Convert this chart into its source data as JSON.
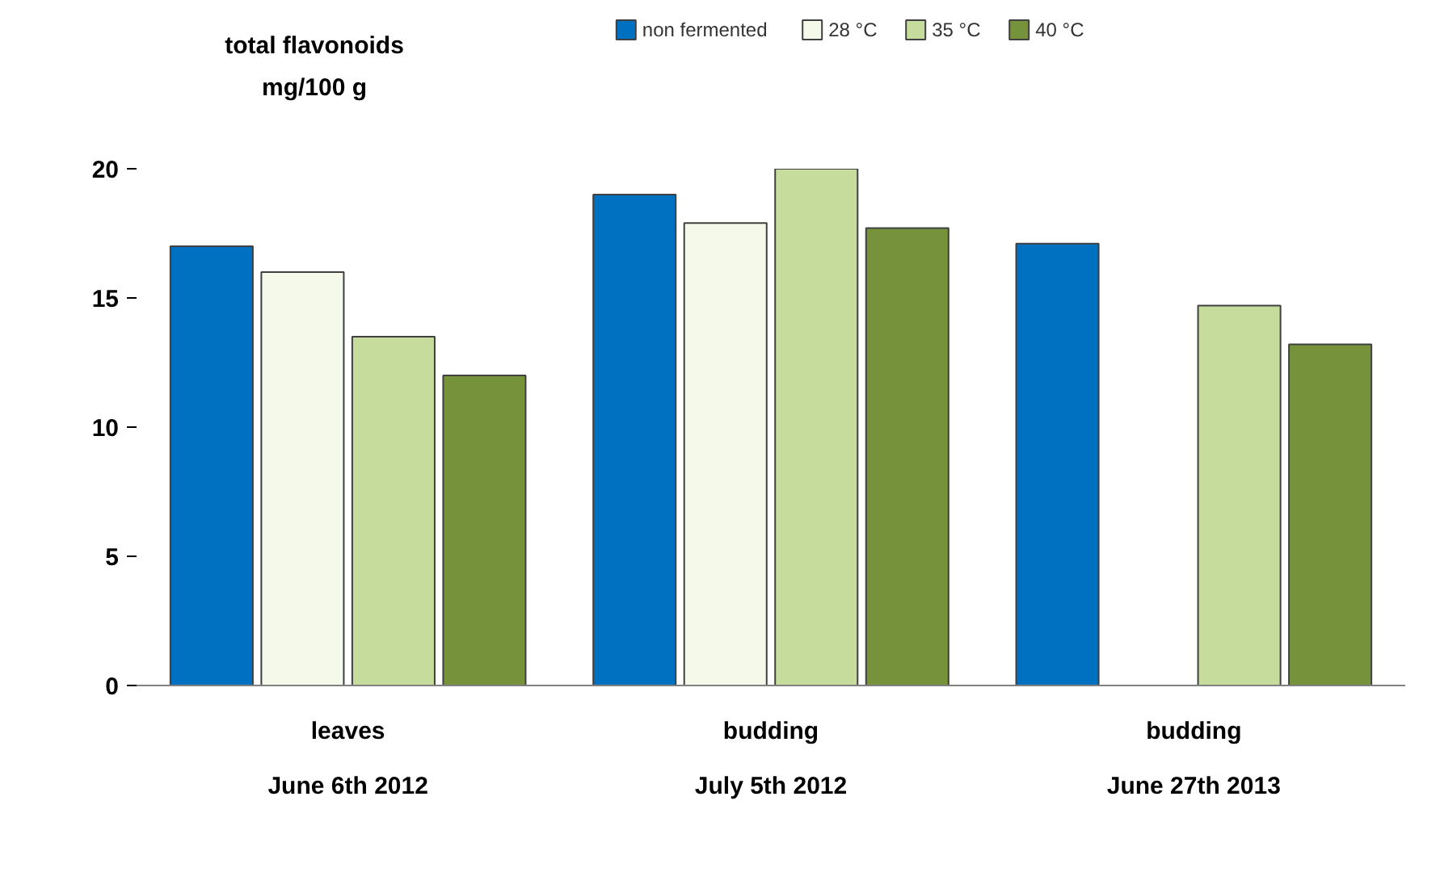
{
  "chart_data": {
    "type": "bar",
    "ylabel": "total flavonoids\nmg/100 g",
    "categories": [
      "leaves\nJune 6th 2012",
      "budding\nJuly 5th 2012",
      "budding\nJune 27th 2013"
    ],
    "series": [
      {
        "name": "non fermented",
        "color": "#0070c0",
        "values": [
          17,
          19,
          17.1
        ]
      },
      {
        "name": "28 °C",
        "color": "#f5f9ea",
        "values": [
          16,
          17.9,
          null
        ]
      },
      {
        "name": "35 °C",
        "color": "#c6dc9c",
        "values": [
          13.5,
          20,
          14.7
        ]
      },
      {
        "name": "40 °C",
        "color": "#76933c",
        "values": [
          12,
          17.7,
          13.2
        ]
      }
    ],
    "ylim": [
      0,
      20
    ],
    "yticks": [
      0,
      5,
      10,
      15,
      20
    ],
    "grid": false,
    "legend": "top"
  }
}
